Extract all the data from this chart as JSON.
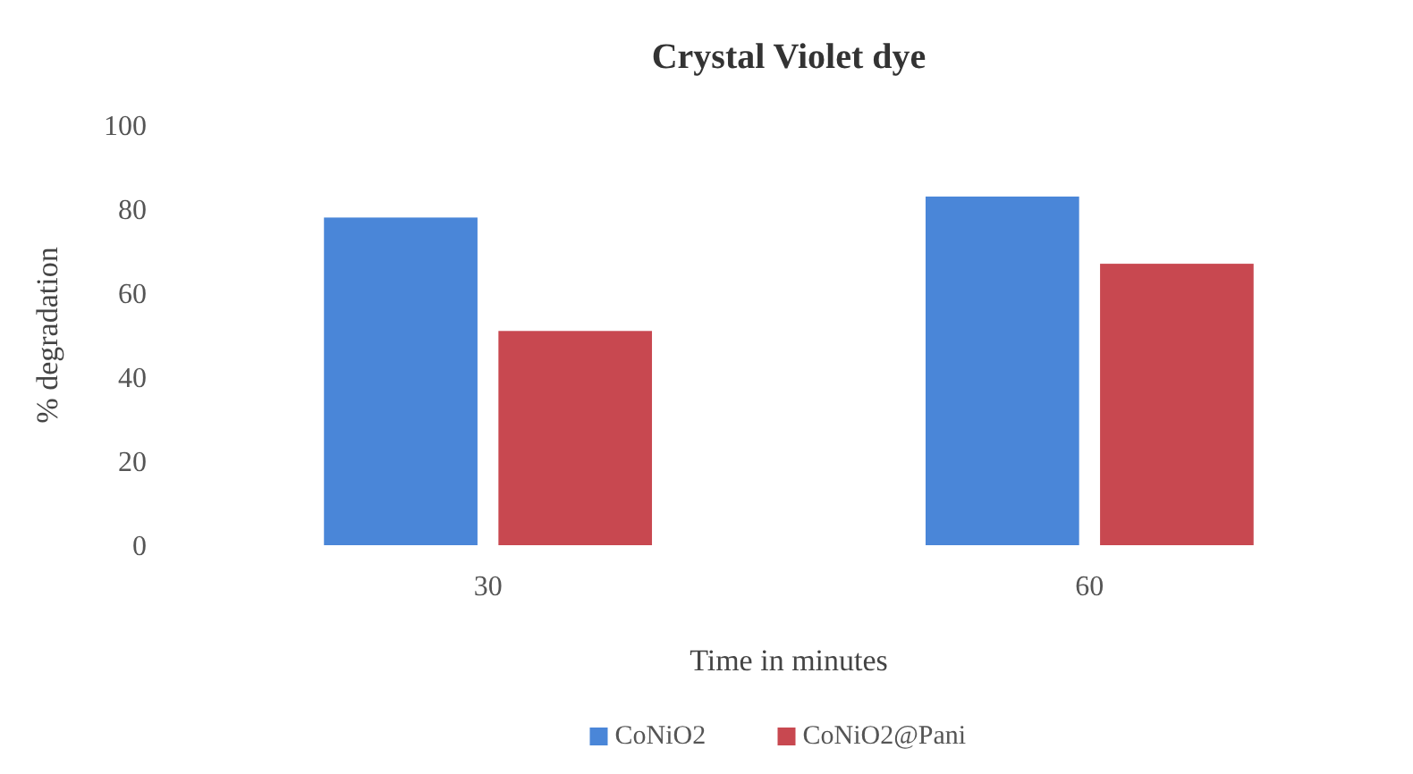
{
  "chart_data": {
    "type": "bar",
    "title": "Crystal Violet dye",
    "xlabel": "Time in minutes",
    "ylabel": "% degradation",
    "categories": [
      "30",
      "60"
    ],
    "series": [
      {
        "name": "CoNiO2",
        "color": "#4a86d8",
        "values": [
          78,
          83
        ]
      },
      {
        "name": "CoNiO2@Pani",
        "color": "#c84850",
        "values": [
          51,
          67
        ]
      }
    ],
    "ylim": [
      0,
      100
    ],
    "yticks": [
      0,
      20,
      40,
      60,
      80,
      100
    ],
    "grid": false,
    "legend": "bottom"
  }
}
